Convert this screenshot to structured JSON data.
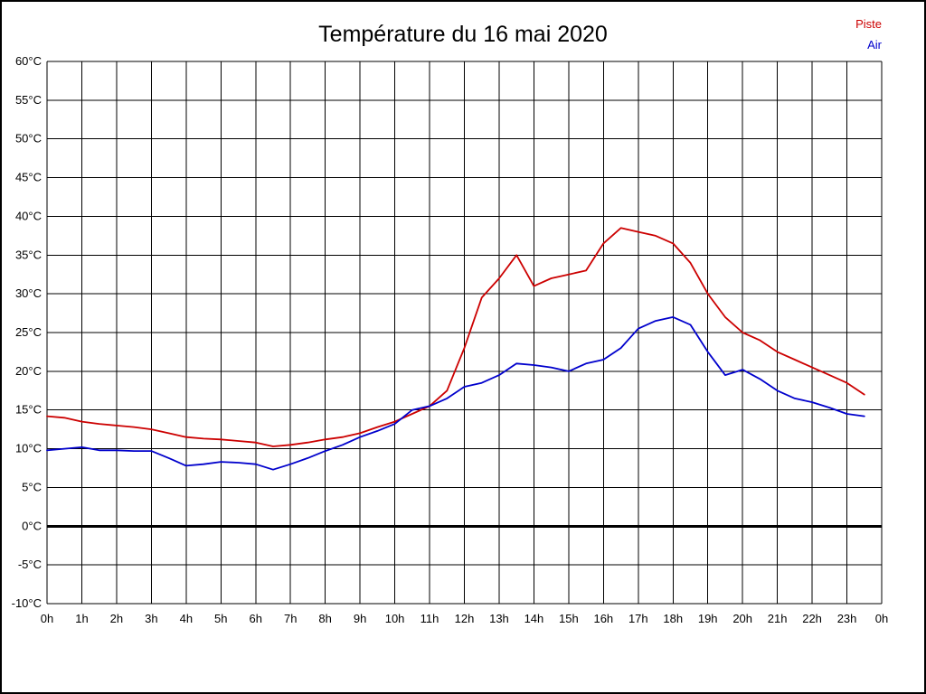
{
  "title": "Température du 16 mai 2020",
  "legend": [
    {
      "label": "Piste",
      "color": "#cc0000"
    },
    {
      "label": "Air",
      "color": "#0000cc"
    }
  ],
  "chart_data": {
    "type": "line",
    "title": "Température du 16 mai 2020",
    "xlabel": "",
    "ylabel": "",
    "x_unit": "hours",
    "xlim": [
      0,
      24
    ],
    "ylim": [
      -10,
      60
    ],
    "grid": true,
    "zero_line": true,
    "legend_position": "top-right",
    "x_ticks": [
      "0h",
      "1h",
      "2h",
      "3h",
      "4h",
      "5h",
      "6h",
      "7h",
      "8h",
      "9h",
      "10h",
      "11h",
      "12h",
      "13h",
      "14h",
      "15h",
      "16h",
      "17h",
      "18h",
      "19h",
      "20h",
      "21h",
      "22h",
      "23h",
      "0h"
    ],
    "y_ticks": [
      {
        "value": 60,
        "label": "60°C"
      },
      {
        "value": 55,
        "label": "55°C"
      },
      {
        "value": 50,
        "label": "50°C"
      },
      {
        "value": 45,
        "label": "45°C"
      },
      {
        "value": 40,
        "label": "40°C"
      },
      {
        "value": 35,
        "label": "35°C"
      },
      {
        "value": 30,
        "label": "30°C"
      },
      {
        "value": 25,
        "label": "25°C"
      },
      {
        "value": 20,
        "label": "20°C"
      },
      {
        "value": 15,
        "label": "15°C"
      },
      {
        "value": 10,
        "label": "10°C"
      },
      {
        "value": 5,
        "label": "5°C"
      },
      {
        "value": 0,
        "label": "0°C"
      },
      {
        "value": -5,
        "label": "-5°C"
      },
      {
        "value": -10,
        "label": "-10°C"
      }
    ],
    "x": [
      0,
      0.5,
      1,
      1.5,
      2,
      2.5,
      3,
      3.5,
      4,
      4.5,
      5,
      5.5,
      6,
      6.5,
      7,
      7.5,
      8,
      8.5,
      9,
      9.5,
      10,
      10.5,
      11,
      11.5,
      12,
      12.5,
      13,
      13.5,
      14,
      14.5,
      15,
      15.5,
      16,
      16.5,
      17,
      17.5,
      18,
      18.5,
      19,
      19.5,
      20,
      20.5,
      21,
      21.5,
      22,
      22.5,
      23,
      23.5
    ],
    "series": [
      {
        "name": "Piste",
        "color": "#cc0000",
        "values": [
          14.2,
          14,
          13.5,
          13.2,
          13,
          12.8,
          12.5,
          12,
          11.5,
          11.3,
          11.2,
          11,
          10.8,
          10.3,
          10.5,
          10.8,
          11.2,
          11.5,
          12,
          12.8,
          13.5,
          14.5,
          15.5,
          17.5,
          23,
          29.5,
          32,
          35,
          31,
          32,
          32.5,
          33,
          36.5,
          38.5,
          38,
          37.5,
          36.5,
          34,
          30,
          27,
          25,
          24,
          22.5,
          21.5,
          20.5,
          19.5,
          18.5,
          17
        ]
      },
      {
        "name": "Air",
        "color": "#0000cc",
        "values": [
          9.8,
          10,
          10.2,
          9.8,
          9.8,
          9.7,
          9.7,
          8.8,
          7.8,
          8,
          8.3,
          8.2,
          8,
          7.3,
          8,
          8.8,
          9.7,
          10.5,
          11.5,
          12.3,
          13.2,
          15,
          15.5,
          16.5,
          18,
          18.5,
          19.5,
          21,
          20.8,
          20.5,
          20,
          21,
          21.5,
          23,
          25.5,
          26.5,
          27,
          26,
          22.5,
          19.5,
          20.2,
          19,
          17.5,
          16.5,
          16,
          15.3,
          14.5,
          14.2
        ]
      }
    ]
  }
}
